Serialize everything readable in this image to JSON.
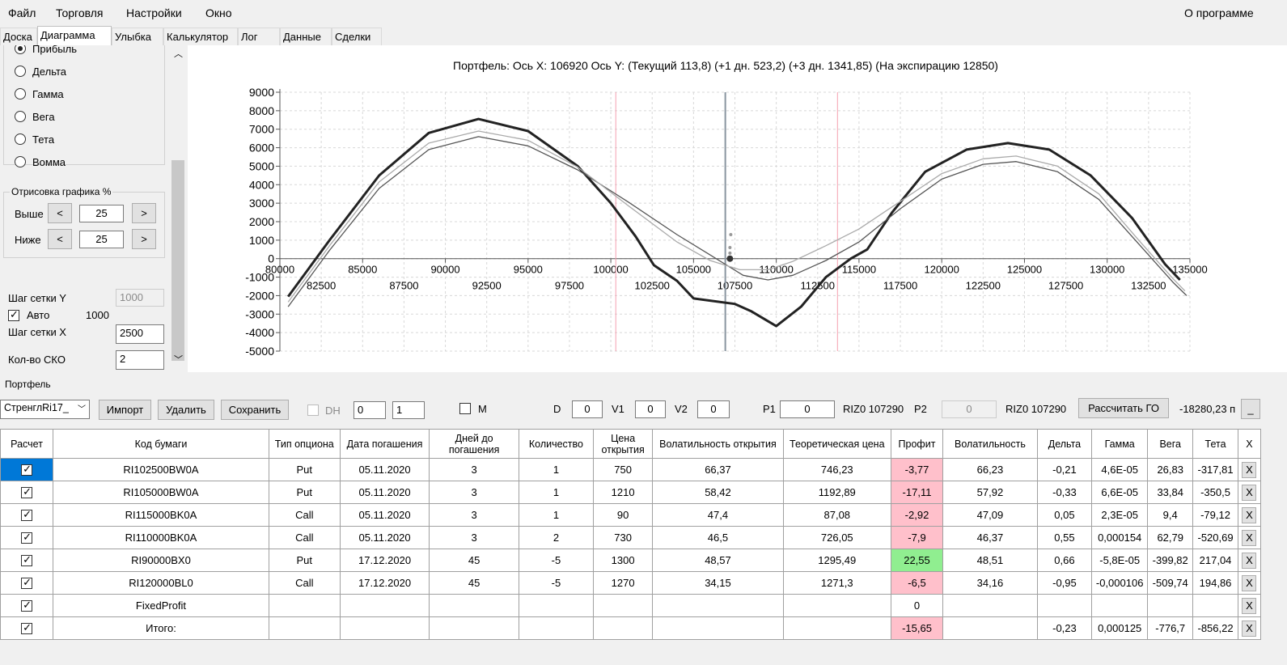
{
  "menu": {
    "file": "Файл",
    "trading": "Торговля",
    "settings": "Настройки",
    "window": "Окно",
    "about": "О программе"
  },
  "tabs": [
    "Доска",
    "Диаграмма",
    "Улыбка",
    "Калькулятор",
    "Лог",
    "Данные",
    "Сделки"
  ],
  "left": {
    "radios": [
      {
        "label": "Прибыль",
        "checked": true
      },
      {
        "label": "Дельта",
        "checked": false
      },
      {
        "label": "Гамма",
        "checked": false
      },
      {
        "label": "Вега",
        "checked": false
      },
      {
        "label": "Тета",
        "checked": false
      },
      {
        "label": "Вомма",
        "checked": false
      }
    ],
    "group_title": "Отрисовка графика %",
    "above_label": "Выше",
    "above_value": "25",
    "below_label": "Ниже",
    "below_value": "25",
    "btn_less": "<",
    "btn_more": ">",
    "grid_y_label": "Шаг сетки Y",
    "grid_y_value": "1000",
    "auto_label": "Авто",
    "auto_value": "1000",
    "grid_x_label": "Шаг сетки X",
    "grid_x_value": "2500",
    "sko_label": "Кол-во СКО",
    "sko_value": "2"
  },
  "chart_data": {
    "type": "line",
    "title": "Портфель: Ось X: 106920 Ось Y:  (Текущий 113,8)  (+1 дн. 523,2)  (+3 дн. 1341,85)  (На экспирацию 12850)",
    "xlim": [
      80000,
      135000
    ],
    "ylim": [
      -5000,
      9000
    ],
    "x_ticks_top": [
      "80000",
      "85000",
      "90000",
      "95000",
      "100000",
      "105000",
      "110000",
      "115000",
      "120000",
      "125000",
      "130000",
      "135000"
    ],
    "x_ticks_bottom": [
      "82500",
      "87500",
      "92500",
      "97500",
      "102500",
      "107500",
      "112500",
      "117500",
      "122500",
      "127500",
      "132500"
    ],
    "y_ticks": [
      "9000",
      "8000",
      "7000",
      "6000",
      "5000",
      "4000",
      "3000",
      "2000",
      "1000",
      "0",
      "-1000",
      "-2000",
      "-3000",
      "-4000",
      "-5000"
    ],
    "grid": true,
    "current_x": 106920,
    "sko_lines": [
      100300,
      113700
    ],
    "series": [
      {
        "color": "#222222",
        "points": [
          [
            80500,
            -2050
          ],
          [
            83000,
            1000
          ],
          [
            86000,
            4500
          ],
          [
            89000,
            6800
          ],
          [
            92000,
            7550
          ],
          [
            95000,
            6900
          ],
          [
            98000,
            5000
          ],
          [
            100000,
            3000
          ],
          [
            101500,
            1200
          ],
          [
            102600,
            -350
          ],
          [
            104000,
            -1200
          ],
          [
            105000,
            -2150
          ],
          [
            107500,
            -2450
          ],
          [
            108500,
            -2850
          ],
          [
            110000,
            -3650
          ],
          [
            111500,
            -2600
          ],
          [
            113000,
            -1000
          ],
          [
            114500,
            0
          ],
          [
            115500,
            500
          ],
          [
            117000,
            2500
          ],
          [
            119000,
            4700
          ],
          [
            121500,
            5900
          ],
          [
            124000,
            6250
          ],
          [
            126500,
            5900
          ],
          [
            129000,
            4500
          ],
          [
            131500,
            2200
          ],
          [
            133500,
            -300
          ],
          [
            134400,
            -1150
          ]
        ]
      },
      {
        "color": "#555555",
        "points": [
          [
            80500,
            -2600
          ],
          [
            83000,
            450
          ],
          [
            86000,
            3800
          ],
          [
            89000,
            5900
          ],
          [
            92000,
            6600
          ],
          [
            95000,
            6100
          ],
          [
            98000,
            4800
          ],
          [
            101000,
            3100
          ],
          [
            104000,
            1300
          ],
          [
            106000,
            200
          ],
          [
            108000,
            -900
          ],
          [
            109500,
            -1150
          ],
          [
            111000,
            -900
          ],
          [
            113000,
            -100
          ],
          [
            115000,
            900
          ],
          [
            117500,
            2700
          ],
          [
            120000,
            4300
          ],
          [
            122500,
            5100
          ],
          [
            124500,
            5250
          ],
          [
            127000,
            4700
          ],
          [
            129500,
            3200
          ],
          [
            132000,
            700
          ],
          [
            134000,
            -1300
          ],
          [
            134800,
            -2000
          ]
        ]
      },
      {
        "color": "#aaaaaa",
        "points": [
          [
            80500,
            -2350
          ],
          [
            83000,
            700
          ],
          [
            86000,
            4150
          ],
          [
            89000,
            6250
          ],
          [
            92000,
            6900
          ],
          [
            95000,
            6400
          ],
          [
            98000,
            4950
          ],
          [
            101000,
            2900
          ],
          [
            104000,
            900
          ],
          [
            106000,
            -100
          ],
          [
            107800,
            -600
          ],
          [
            109500,
            -600
          ],
          [
            111000,
            -150
          ],
          [
            113000,
            700
          ],
          [
            115000,
            1600
          ],
          [
            117500,
            3100
          ],
          [
            120000,
            4600
          ],
          [
            122500,
            5400
          ],
          [
            124500,
            5550
          ],
          [
            127000,
            5000
          ],
          [
            129500,
            3500
          ],
          [
            132000,
            900
          ],
          [
            134000,
            -1100
          ],
          [
            134700,
            -1750
          ]
        ]
      }
    ],
    "markers": [
      [
        107200,
        300
      ],
      [
        107200,
        600
      ],
      [
        107250,
        1300
      ],
      [
        107200,
        0
      ]
    ]
  },
  "portfolio": {
    "label": "Портфель",
    "combo": "СтренглRi17_",
    "import": "Импорт",
    "delete": "Удалить",
    "save": "Сохранить",
    "dh_label": "DH",
    "spin1": "0",
    "spin2": "1",
    "m_label": "M",
    "d_label": "D",
    "d_value": "0",
    "v1_label": "V1",
    "v1_value": "0",
    "v2_label": "V2",
    "v2_value": "0",
    "p1_label": "P1",
    "p1_value": "0",
    "p1_ref": "RIZ0 107290",
    "p2_label": "P2",
    "p2_value": "0",
    "p2_ref": "RIZ0 107290",
    "calc_go": "Рассчитать ГО",
    "go_value": "-18280,23 п",
    "min_btn": "_"
  },
  "grid": {
    "headers": [
      "Расчет",
      "Код бумаги",
      "Тип опциона",
      "Дата погашения",
      "Дней до погашения",
      "Количество",
      "Цена открытия",
      "Волатильность открытия",
      "Теоретическая цена",
      "Профит",
      "Волатильность",
      "Дельта",
      "Гамма",
      "Вега",
      "Тета",
      "X"
    ],
    "rows": [
      {
        "code": "RI102500BW0A",
        "type": "Put",
        "date": "05.11.2020",
        "days": "3",
        "qty": "1",
        "open": "750",
        "vol_open": "66,37",
        "theor": "746,23",
        "profit": "-3,77",
        "vol": "66,23",
        "delta": "-0,21",
        "gamma": "4,6E-05",
        "vega": "26,83",
        "theta": "-317,81",
        "x": "X"
      },
      {
        "code": "RI105000BW0A",
        "type": "Put",
        "date": "05.11.2020",
        "days": "3",
        "qty": "1",
        "open": "1210",
        "vol_open": "58,42",
        "theor": "1192,89",
        "profit": "-17,11",
        "vol": "57,92",
        "delta": "-0,33",
        "gamma": "6,6E-05",
        "vega": "33,84",
        "theta": "-350,5",
        "x": "X"
      },
      {
        "code": "RI115000BK0A",
        "type": "Call",
        "date": "05.11.2020",
        "days": "3",
        "qty": "1",
        "open": "90",
        "vol_open": "47,4",
        "theor": "87,08",
        "profit": "-2,92",
        "vol": "47,09",
        "delta": "0,05",
        "gamma": "2,3E-05",
        "vega": "9,4",
        "theta": "-79,12",
        "x": "X"
      },
      {
        "code": "RI110000BK0A",
        "type": "Call",
        "date": "05.11.2020",
        "days": "3",
        "qty": "2",
        "open": "730",
        "vol_open": "46,5",
        "theor": "726,05",
        "profit": "-7,9",
        "vol": "46,37",
        "delta": "0,55",
        "gamma": "0,000154",
        "vega": "62,79",
        "theta": "-520,69",
        "x": "X"
      },
      {
        "code": "RI90000BX0",
        "type": "Put",
        "date": "17.12.2020",
        "days": "45",
        "qty": "-5",
        "open": "1300",
        "vol_open": "48,57",
        "theor": "1295,49",
        "profit": "22,55",
        "vol": "48,51",
        "delta": "0,66",
        "gamma": "-5,8E-05",
        "vega": "-399,82",
        "theta": "217,04",
        "x": "X"
      },
      {
        "code": "RI120000BL0",
        "type": "Call",
        "date": "17.12.2020",
        "days": "45",
        "qty": "-5",
        "open": "1270",
        "vol_open": "34,15",
        "theor": "1271,3",
        "profit": "-6,5",
        "vol": "34,16",
        "delta": "-0,95",
        "gamma": "-0,000106",
        "vega": "-509,74",
        "theta": "194,86",
        "x": "X"
      },
      {
        "code": "FixedProfit",
        "type": "",
        "date": "",
        "days": "",
        "qty": "",
        "open": "",
        "vol_open": "",
        "theor": "",
        "profit": "0",
        "vol": "",
        "delta": "",
        "gamma": "",
        "vega": "",
        "theta": "",
        "x": "X"
      },
      {
        "code": "Итого:",
        "type": "",
        "date": "",
        "days": "",
        "qty": "",
        "open": "",
        "vol_open": "",
        "theor": "",
        "profit": "-15,65",
        "vol": "",
        "delta": "-0,23",
        "gamma": "0,000125",
        "vega": "-776,7",
        "theta": "-856,22",
        "x": "X"
      }
    ]
  }
}
